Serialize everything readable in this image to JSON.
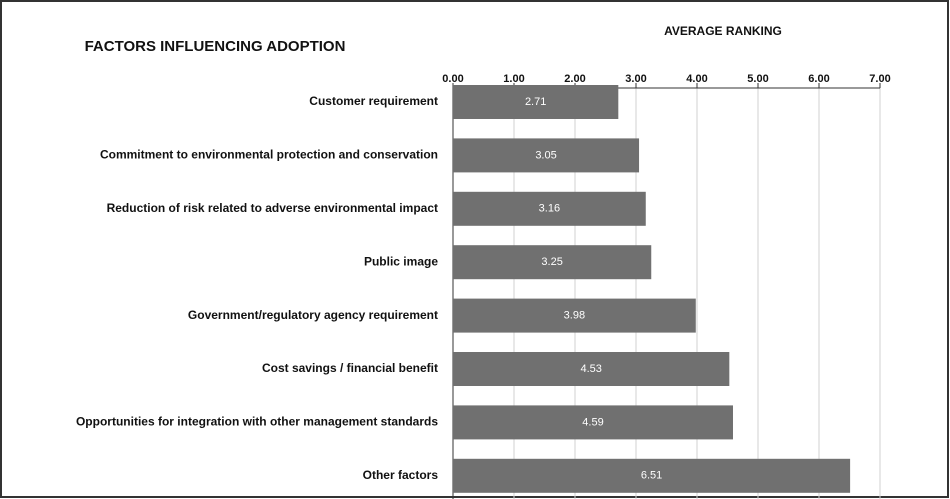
{
  "chart_data": {
    "type": "bar",
    "orientation": "horizontal",
    "title": "FACTORS INFLUENCING ADOPTION",
    "x_label": "AVERAGE RANKING",
    "categories": [
      "Customer requirement",
      "Commitment to environmental protection and conservation",
      "Reduction of risk related to adverse environmental impact",
      "Public image",
      "Government/regulatory agency requirement",
      "Cost savings / financial benefit",
      "Opportunities for integration with other management standards",
      "Other factors"
    ],
    "values": [
      2.71,
      3.05,
      3.16,
      3.25,
      3.98,
      4.53,
      4.59,
      6.51
    ],
    "color": "#707070",
    "xlim": [
      0,
      7
    ],
    "xticks": [
      {
        "value": 0,
        "label": "0.00"
      },
      {
        "value": 1,
        "label": "1.00"
      },
      {
        "value": 2,
        "label": "2.00"
      },
      {
        "value": 3,
        "label": "3.00"
      },
      {
        "value": 4,
        "label": "4.00"
      },
      {
        "value": 5,
        "label": "5.00"
      },
      {
        "value": 6,
        "label": "6.00"
      },
      {
        "value": 7,
        "label": "7.00"
      }
    ],
    "grid": true
  }
}
